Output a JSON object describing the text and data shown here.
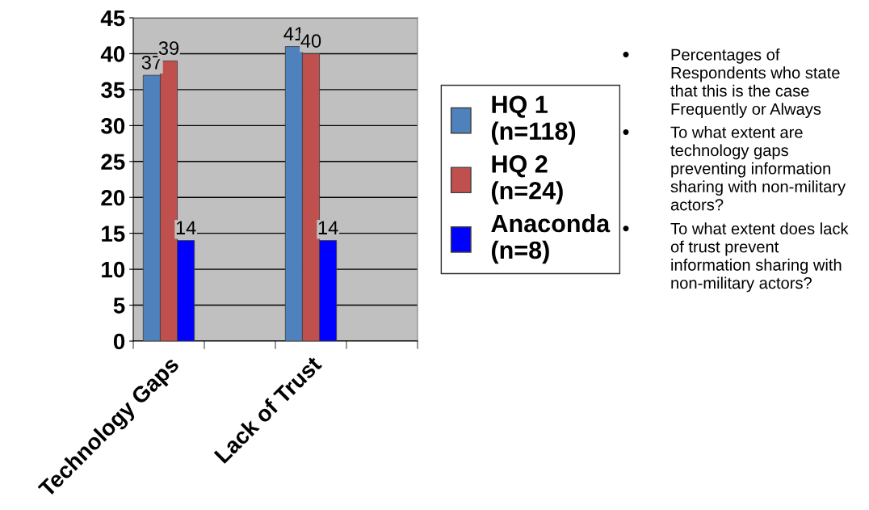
{
  "chart_data": {
    "type": "bar",
    "categories": [
      "Technology Gaps",
      null,
      "Lack of Trust",
      null
    ],
    "series": [
      {
        "name": "HQ 1\n(n=118)",
        "color": "#4f81bd",
        "values": [
          37,
          null,
          41,
          null
        ]
      },
      {
        "name": "HQ 2\n(n=24)",
        "color": "#c0504d",
        "values": [
          39,
          null,
          40,
          null
        ]
      },
      {
        "name": "Anaconda\n(n=8)",
        "color": "#0000ff",
        "values": [
          14,
          null,
          14,
          null
        ]
      }
    ],
    "ylim": [
      0,
      45
    ],
    "yticks": [
      0,
      5,
      10,
      15,
      20,
      25,
      30,
      35,
      40,
      45
    ],
    "grid": "y",
    "legend": "right",
    "data_labels": true,
    "annotations": [
      "Percentages of\nRespondents who state\nthat this is the case\nFrequently or Always",
      "To what extent are\ntechnology gaps\npreventing information\nsharing with non-military\nactors?",
      "To what extent does lack\nof trust prevent\ninformation sharing with\nnon-military actors?"
    ]
  }
}
